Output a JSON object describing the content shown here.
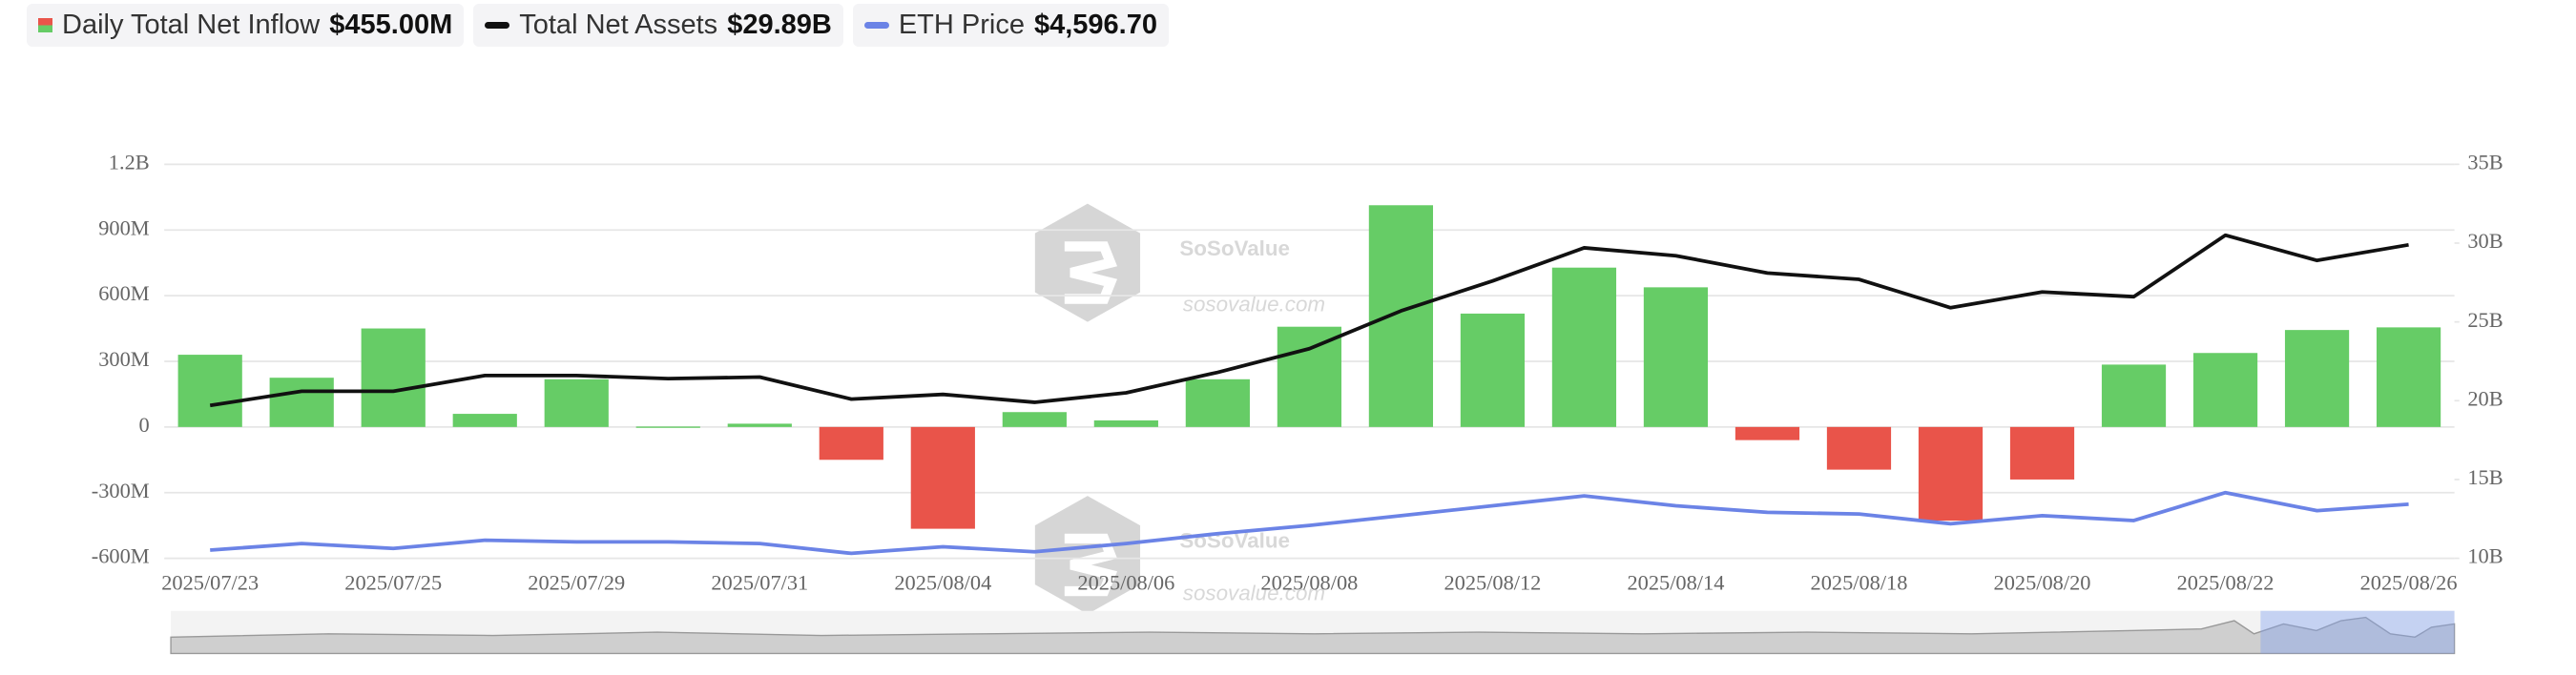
{
  "chart_data": {
    "type": "bar",
    "categories": [
      "2025/07/23",
      null,
      "2025/07/25",
      null,
      "2025/07/29",
      null,
      "2025/07/31",
      null,
      "2025/08/04",
      null,
      "2025/08/06",
      null,
      "2025/08/08",
      null,
      "2025/08/12",
      null,
      "2025/08/14",
      null,
      "2025/08/18",
      null,
      "2025/08/20",
      null,
      "2025/08/22",
      null,
      "2025/08/26"
    ],
    "series": [
      {
        "name": "Daily Total Net Inflow",
        "legend_value": "$455.00M",
        "type": "bar",
        "color": "#66cc66",
        "negative_color": "#e9544a",
        "values": [
          330,
          225,
          450,
          60,
          218,
          2,
          15,
          -150,
          -465,
          68,
          30,
          218,
          458,
          1013,
          518,
          728,
          638,
          -60,
          -195,
          -428,
          -240,
          285,
          338,
          443,
          455
        ]
      },
      {
        "name": "Total Net Assets",
        "legend_value": "$29.89B",
        "type": "line",
        "axis": "y2",
        "color": "#111111",
        "values": [
          19.7,
          20.6,
          20.6,
          21.6,
          21.6,
          21.4,
          21.5,
          20.1,
          20.4,
          19.9,
          20.5,
          21.8,
          23.3,
          25.7,
          27.6,
          29.7,
          29.2,
          28.1,
          27.7,
          25.9,
          26.9,
          26.6,
          30.5,
          28.9,
          29.89
        ]
      },
      {
        "name": "ETH Price",
        "legend_value": "$4,596.70",
        "type": "line",
        "axis": "eth",
        "color": "#6b83e6",
        "values": [
          3633,
          3771,
          3667,
          3840,
          3805,
          3805,
          3771,
          3564,
          3702,
          3598,
          3771,
          3978,
          4150,
          4357,
          4564,
          4771,
          4564,
          4426,
          4392,
          4185,
          4357,
          4254,
          4840,
          4461,
          4596.7
        ]
      }
    ],
    "ylim": [
      -600,
      1200
    ],
    "yticks": [
      {
        "value": -600,
        "label": "-600M"
      },
      {
        "value": -300,
        "label": "-300M"
      },
      0,
      {
        "value": 300,
        "label": "300M"
      },
      {
        "value": 600,
        "label": "600M"
      },
      {
        "value": 900,
        "label": "900M"
      },
      {
        "value": 1200,
        "label": "1.2B"
      }
    ],
    "y2lim": [
      10,
      35
    ],
    "y2ticks": [
      {
        "value": 10,
        "label": "10B"
      },
      {
        "value": 15,
        "label": "15B"
      },
      {
        "value": 20,
        "label": "20B"
      },
      {
        "value": 25,
        "label": "25B"
      },
      {
        "value": 30,
        "label": "30B"
      },
      {
        "value": 35,
        "label": "35B"
      }
    ],
    "eth_lim": [
      3460,
      11740
    ],
    "grid": true,
    "watermark": {
      "brand": "SoSoValue",
      "url": "sosovalue.com"
    }
  }
}
